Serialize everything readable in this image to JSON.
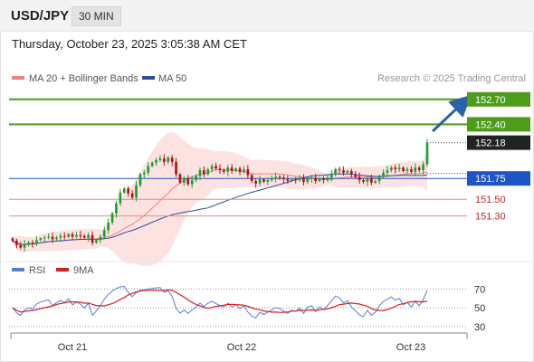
{
  "header": {
    "symbol": "USD/JPY",
    "timeframe": "30 MIN",
    "timestamp": "Thursday, October 23, 2025 3:05:38 AM CET"
  },
  "source_note": "Research © 2025 Trading Central",
  "colors": {
    "up": "#1e9e2e",
    "down": "#b31216",
    "ma20": "#f28080",
    "band_fill": "#fde2e2",
    "ma50": "#2c4f9e",
    "resistance": "#4d9d1a",
    "support": "#e48a8a",
    "pivot": "#1d55c4",
    "arrow": "#2b63a8",
    "rsi": "#5a7ecf",
    "rsi_ma": "#d81e1e"
  },
  "chart_data": [
    {
      "type": "candlestick",
      "title": "",
      "legend": [
        {
          "name": "MA 20 + Bollinger Bands",
          "color": "#f28080"
        },
        {
          "name": "MA 50",
          "color": "#2c4f9e"
        }
      ],
      "legend_position": "top-left",
      "x_ticks": [
        "Oct 21",
        "Oct 22",
        "Oct 23"
      ],
      "ylim": [
        150.85,
        152.85
      ],
      "levels": [
        {
          "value": 152.7,
          "label": "152.70",
          "kind": "resistance"
        },
        {
          "value": 152.4,
          "label": "152.40",
          "kind": "resistance"
        },
        {
          "value": 152.18,
          "label": "152.18",
          "kind": "last"
        },
        {
          "value": 151.75,
          "label": "151.75",
          "kind": "pivot"
        },
        {
          "value": 151.5,
          "label": "151.50",
          "kind": "support"
        },
        {
          "value": 151.3,
          "label": "151.30",
          "kind": "support"
        }
      ],
      "close": [
        151.0,
        150.95,
        150.92,
        150.96,
        150.98,
        150.97,
        151.01,
        151.03,
        151.04,
        151.05,
        151.02,
        151.04,
        151.06,
        151.05,
        151.08,
        151.05,
        151.07,
        151.06,
        151.04,
        151.07,
        150.98,
        151.01,
        151.05,
        151.13,
        151.22,
        151.33,
        151.45,
        151.58,
        151.63,
        151.57,
        151.52,
        151.67,
        151.8,
        151.82,
        151.9,
        151.94,
        151.97,
        151.99,
        151.95,
        152.0,
        151.95,
        151.8,
        151.7,
        151.75,
        151.68,
        151.73,
        151.78,
        151.85,
        151.8,
        151.86,
        151.9,
        151.87,
        151.85,
        151.83,
        151.88,
        151.84,
        151.87,
        151.83,
        151.86,
        151.79,
        151.72,
        151.69,
        151.74,
        151.71,
        151.73,
        151.75,
        151.77,
        151.76,
        151.74,
        151.72,
        151.74,
        151.73,
        151.75,
        151.71,
        151.75,
        151.76,
        151.72,
        151.75,
        151.73,
        151.76,
        151.8,
        151.86,
        151.85,
        151.82,
        151.84,
        151.8,
        151.77,
        151.73,
        151.71,
        151.75,
        151.7,
        151.72,
        151.77,
        151.82,
        151.85,
        151.88,
        151.86,
        151.88,
        151.84,
        151.86,
        151.83,
        151.88,
        151.85,
        151.92,
        152.18
      ],
      "series_note": "open of each candle = previous close"
    },
    {
      "type": "line",
      "title": "",
      "legend": [
        {
          "name": "RSI",
          "color": "#5a7ecf"
        },
        {
          "name": "9MA",
          "color": "#d81e1e"
        }
      ],
      "ylim": [
        25,
        80
      ],
      "y_ticks": [
        70,
        50,
        30
      ],
      "dotted_levels": [
        70,
        50,
        30
      ]
    }
  ]
}
